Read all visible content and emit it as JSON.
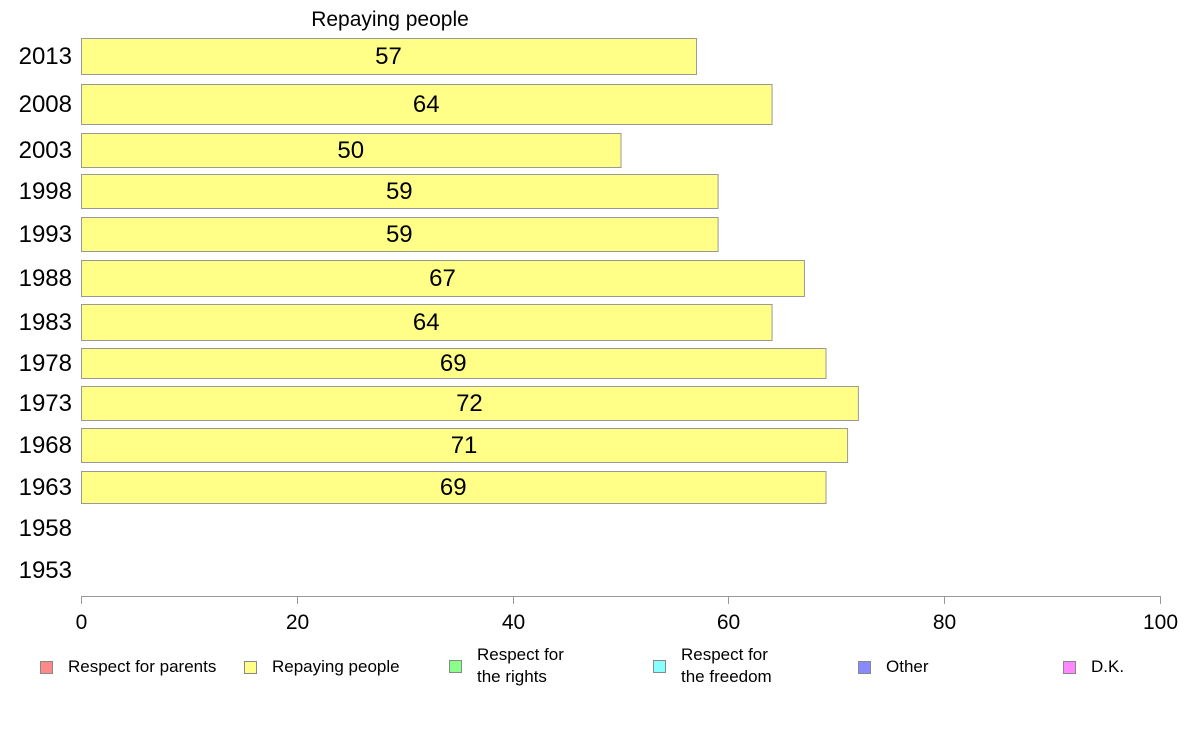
{
  "chart_data": {
    "type": "bar",
    "orientation": "horizontal",
    "title": "Repaying people",
    "categories": [
      "2013",
      "2008",
      "2003",
      "1998",
      "1993",
      "1988",
      "1983",
      "1978",
      "1973",
      "1968",
      "1963",
      "1958",
      "1953"
    ],
    "values": [
      57,
      64,
      50,
      59,
      59,
      67,
      64,
      69,
      72,
      71,
      69,
      null,
      null
    ],
    "xlim": [
      0,
      100
    ],
    "xticks": [
      0,
      20,
      40,
      60,
      80,
      100
    ],
    "bar_color": "#ffff88",
    "grid": false,
    "legend_position": "bottom",
    "legend": [
      {
        "label": "Respect for parents",
        "color": "#ff8888"
      },
      {
        "label": "Repaying people",
        "color": "#ffff88"
      },
      {
        "label": "Respect for\nthe rights",
        "color": "#88ff88"
      },
      {
        "label": "Respect for\nthe freedom",
        "color": "#88ffff"
      },
      {
        "label": "Other",
        "color": "#8888ff"
      },
      {
        "label": "D.K.",
        "color": "#ff88ff"
      }
    ]
  }
}
